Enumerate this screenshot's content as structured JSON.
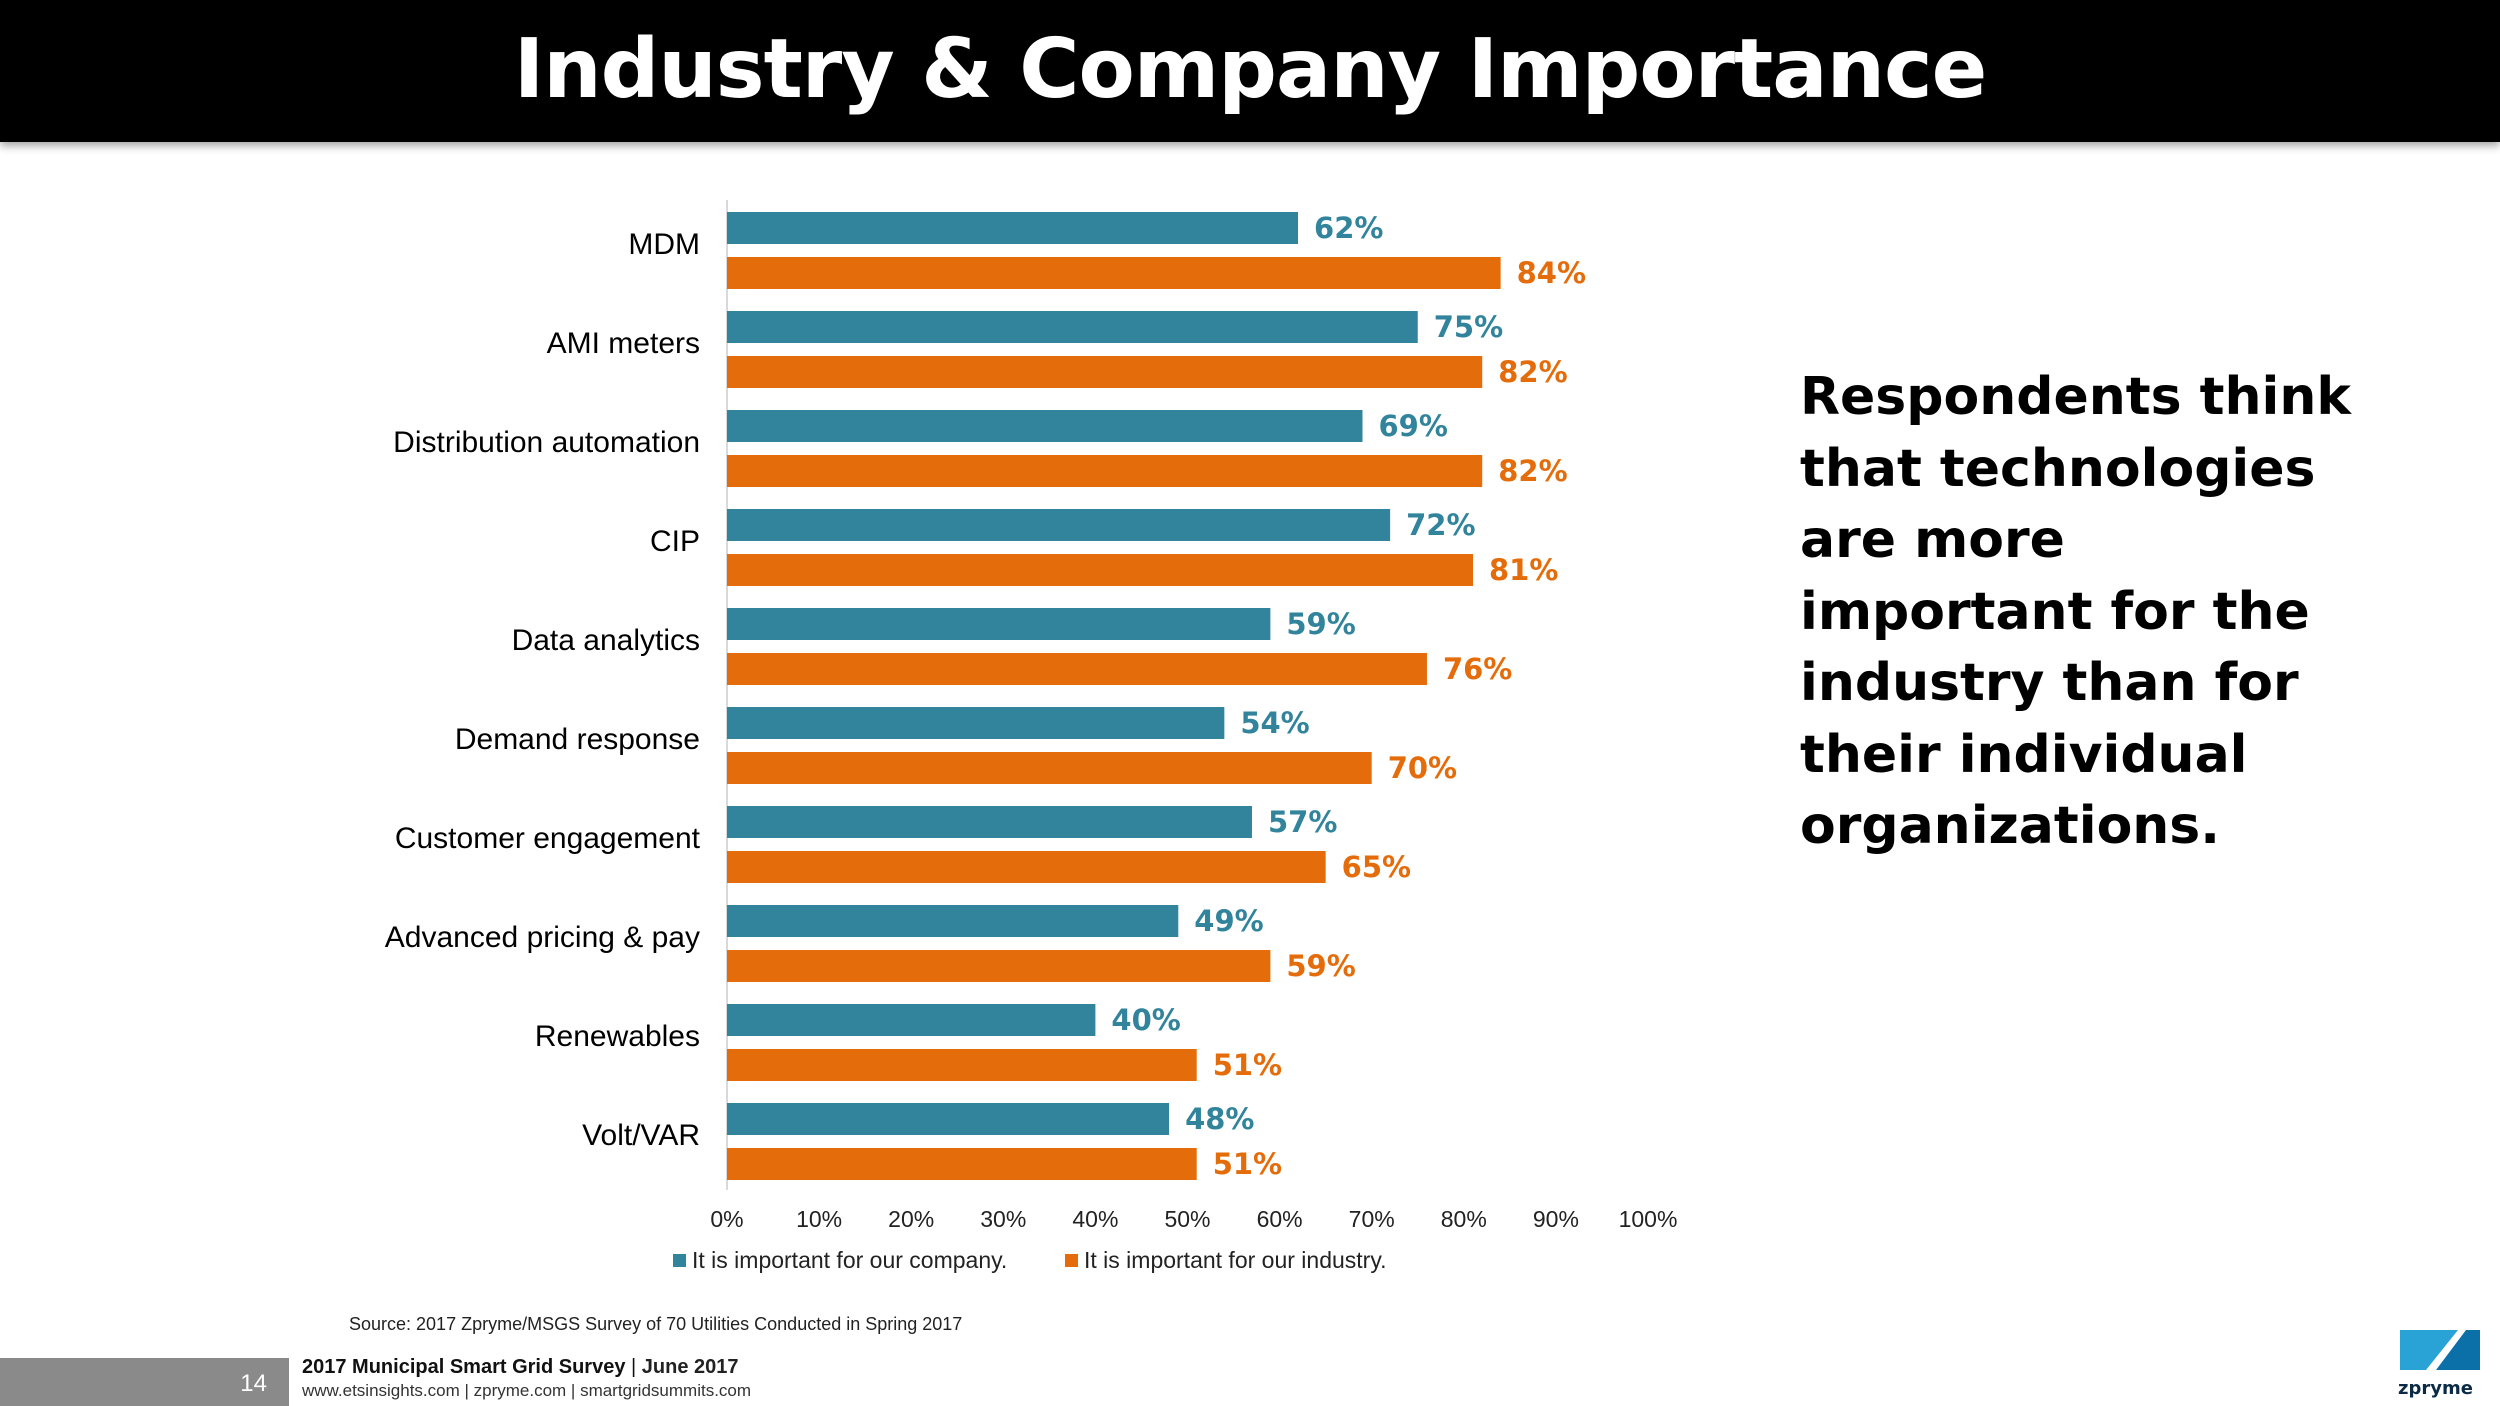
{
  "page": {
    "title": "Industry & Company Importance",
    "callout": "Respondents think that technologies are more important for the industry than for their individual organizations.",
    "source": "Source: 2017 Zpryme/MSGS Survey of 70 Utilities Conducted in Spring 2017",
    "footer": {
      "page_number": "14",
      "survey_title": "2017 Municipal Smart Grid Survey",
      "separator": "|",
      "date": "June 2017",
      "links": "www.etsinsights.com | zpryme.com | smartgridsummits.com",
      "logo_text": "zpryme"
    }
  },
  "colors": {
    "company": "#31849b",
    "industry": "#e46c0a",
    "axis": "#d9d9d9",
    "category_text": "#000000"
  },
  "chart_data": {
    "type": "bar",
    "orientation": "horizontal",
    "title": "",
    "categories": [
      "MDM",
      "AMI meters",
      "Distribution automation",
      "CIP",
      "Data analytics",
      "Demand response",
      "Customer engagement",
      "Advanced pricing & pay",
      "Renewables",
      "Volt/VAR"
    ],
    "series": [
      {
        "name": "It is important for our company.",
        "values": [
          62,
          75,
          69,
          72,
          59,
          54,
          57,
          49,
          40,
          48
        ]
      },
      {
        "name": "It is important for our industry.",
        "values": [
          84,
          82,
          82,
          81,
          76,
          70,
          65,
          59,
          51,
          51
        ]
      }
    ],
    "value_suffix": "%",
    "xlim": [
      0,
      100
    ],
    "x_ticks": [
      "0%",
      "10%",
      "20%",
      "30%",
      "40%",
      "50%",
      "60%",
      "70%",
      "80%",
      "90%",
      "100%"
    ],
    "grid": false,
    "legend_position": "bottom"
  }
}
